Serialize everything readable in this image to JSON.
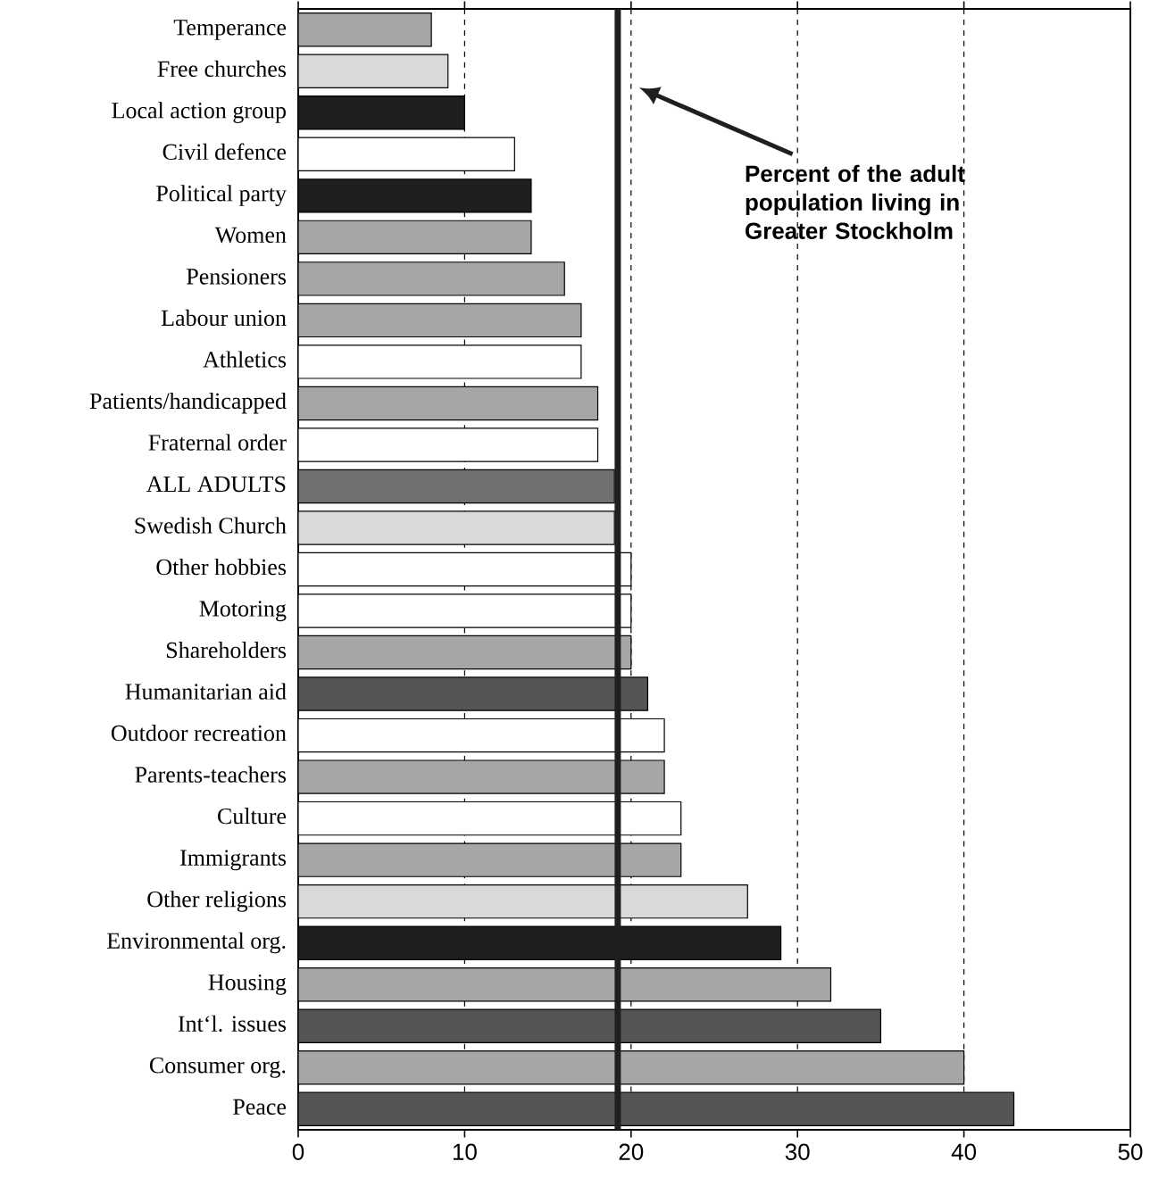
{
  "chart_data": {
    "type": "bar",
    "orientation": "horizontal",
    "categories": [
      "Temperance",
      "Free churches",
      "Local action group",
      "Civil defence",
      "Political party",
      "Women",
      "Pensioners",
      "Labour union",
      "Athletics",
      "Patients/handicapped",
      "Fraternal order",
      "ALL ADULTS",
      "Swedish Church",
      "Other hobbies",
      "Motoring",
      "Shareholders",
      "Humanitarian aid",
      "Outdoor recreation",
      "Parents-teachers",
      "Culture",
      "Immigrants",
      "Other religions",
      "Environmental org.",
      "Housing",
      "Int‘l. issues",
      "Consumer org.",
      "Peace"
    ],
    "values": [
      8,
      9,
      10,
      13,
      14,
      14,
      16,
      17,
      17,
      18,
      18,
      19,
      19,
      20,
      20,
      20,
      21,
      22,
      22,
      23,
      23,
      27,
      29,
      32,
      35,
      40,
      43
    ],
    "colors": [
      "#a6a6a6",
      "#d9d9d9",
      "#1f1f1f",
      "#ffffff",
      "#1f1f1f",
      "#a6a6a6",
      "#a6a6a6",
      "#a6a6a6",
      "#ffffff",
      "#a6a6a6",
      "#ffffff",
      "#707070",
      "#d9d9d9",
      "#ffffff",
      "#ffffff",
      "#a6a6a6",
      "#555555",
      "#ffffff",
      "#a6a6a6",
      "#ffffff",
      "#a6a6a6",
      "#d9d9d9",
      "#1f1f1f",
      "#a6a6a6",
      "#555555",
      "#a6a6a6",
      "#555555"
    ],
    "xlim": [
      0,
      50
    ],
    "xticks": [
      0,
      10,
      20,
      30,
      40,
      50
    ],
    "grid": "x",
    "ref_lines": [
      {
        "axis": "x",
        "value": 19.2,
        "label": "Percent of the adult population living in Greater Stockholm",
        "color": "#1f1f1f"
      }
    ]
  }
}
